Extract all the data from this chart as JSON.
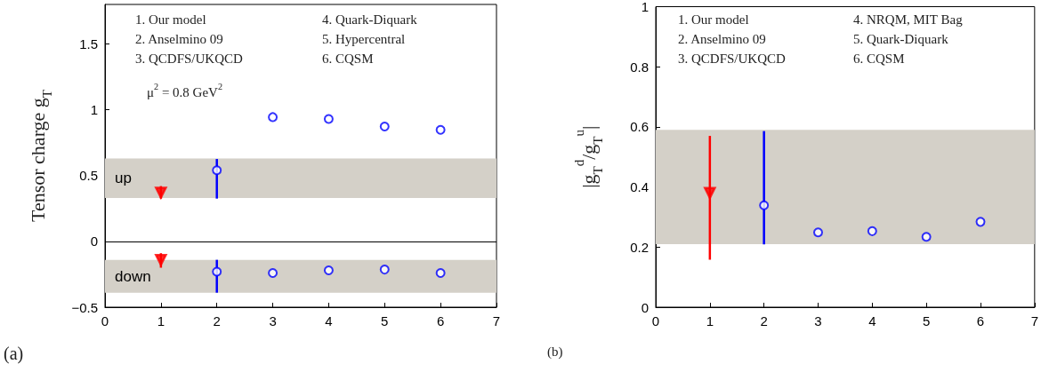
{
  "chart_data": [
    {
      "type": "scatter",
      "ylabel": "Tensor charge g$_{T}$",
      "xlim": [
        0,
        7
      ],
      "xticks": [
        0,
        1,
        2,
        3,
        4,
        5,
        6,
        7
      ],
      "ylim": [
        -0.5,
        1.8
      ],
      "yticks": [
        -0.5,
        0,
        0.5,
        1,
        1.5
      ],
      "series": [
        {
          "color": "#ff0000",
          "marker": "triangle",
          "x": [
            1,
            1
          ],
          "values": [
            0.37,
            -0.14
          ],
          "errors": [
            [
              0.325,
              0.42
            ],
            [
              -0.2,
              -0.09
            ]
          ]
        },
        {
          "color": "#0000ff",
          "marker": "circle",
          "x": [
            2,
            3,
            4,
            5,
            6,
            2,
            3,
            4,
            5,
            6
          ],
          "values": [
            0.54,
            0.944,
            0.93,
            0.873,
            0.847,
            -0.23,
            -0.24,
            -0.22,
            -0.214,
            -0.24
          ],
          "errors": [
            [
              0.325,
              0.626
            ],
            null,
            null,
            null,
            null,
            [
              -0.39,
              -0.14
            ],
            null,
            null,
            null,
            null
          ]
        }
      ],
      "bands": [
        {
          "axis": "y",
          "from": 0.33,
          "to": 0.63,
          "label": "up",
          "color": "#d4d0c8"
        },
        {
          "axis": "y",
          "from": -0.39,
          "to": -0.14,
          "label": "down",
          "color": "#d4d0c8"
        }
      ],
      "ref_lines": [
        {
          "axis": "y",
          "value": 0,
          "label": null,
          "color": "#000000"
        }
      ],
      "annotations": [
        "1. Our model",
        "2. Anselmino 09",
        "3. QCDFS/UKQCD",
        "4. Quark-Diquark",
        "5. Hypercentral",
        "6. CQSM",
        "μ$^{2}$ = 0.8 GeV$^{2}$",
        "(a)"
      ]
    },
    {
      "type": "scatter",
      "ylabel": "|g$_{T}$$^{d}$/g$_{T}$$^{u}$|",
      "xlim": [
        0,
        7
      ],
      "xticks": [
        0,
        1,
        2,
        3,
        4,
        5,
        6,
        7
      ],
      "ylim": [
        0,
        1
      ],
      "yticks": [
        0,
        0.2,
        0.4,
        0.6,
        0.8,
        1
      ],
      "series": [
        {
          "color": "#ff0000",
          "marker": "triangle",
          "x": [
            1
          ],
          "values": [
            0.38
          ],
          "errors": [
            [
              0.158,
              0.57
            ]
          ]
        },
        {
          "color": "#0000ff",
          "marker": "circle",
          "x": [
            2,
            3,
            4,
            5,
            6
          ],
          "values": [
            0.339,
            0.249,
            0.253,
            0.234,
            0.284
          ],
          "errors": [
            [
              0.209,
              0.586
            ],
            null,
            null,
            null,
            null
          ]
        }
      ],
      "bands": [
        {
          "axis": "y",
          "from": 0.21,
          "to": 0.59,
          "label": null,
          "color": "#d4d0c8"
        }
      ],
      "annotations": [
        "1. Our model",
        "2. Anselmino 09",
        "3. QCDFS/UKQCD",
        "4. NRQM, MIT Bag",
        "5. Quark-Diquark",
        "6. CQSM",
        "(b)"
      ]
    }
  ]
}
